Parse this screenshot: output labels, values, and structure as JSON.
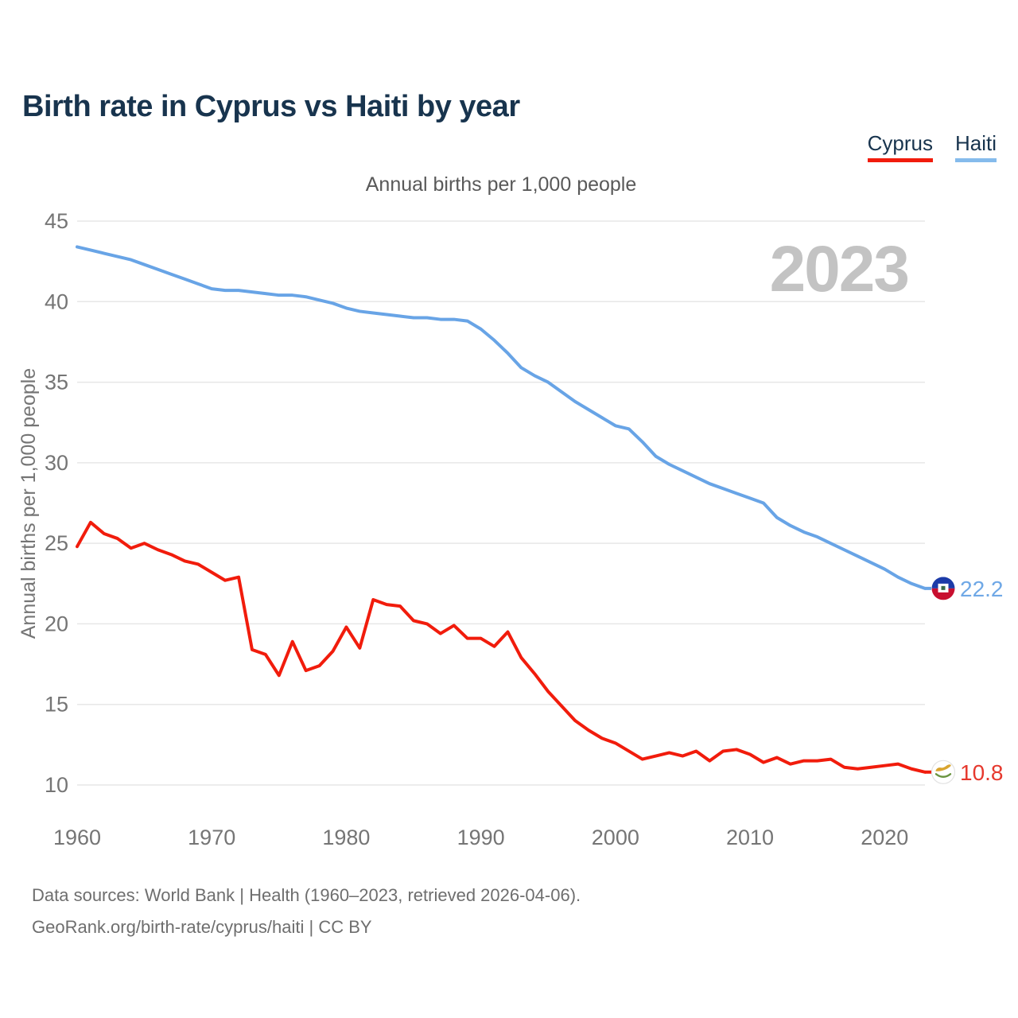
{
  "header": {
    "title": "Birth rate in Cyprus vs Haiti by year"
  },
  "subtitle": "Annual births per 1,000 people",
  "watermark": "2023",
  "footer": {
    "line1": "Data sources: World Bank | Health (1960–2023, retrieved 2026-04-06).",
    "line2": "GeoRank.org/birth-rate/cyprus/haiti | CC BY"
  },
  "chart_data": {
    "type": "line",
    "title": "Annual births per 1,000 people",
    "xlabel": "",
    "ylabel": "Annual births per 1,000 people",
    "ylim": [
      10,
      45
    ],
    "xlim": [
      1960,
      2023
    ],
    "yticks": [
      45,
      40,
      35,
      30,
      25,
      20,
      15,
      10
    ],
    "xticks": [
      1960,
      1970,
      1980,
      1990,
      2000,
      2010,
      2020
    ],
    "grid": true,
    "legend_position": "top-right",
    "x": [
      1960,
      1961,
      1962,
      1963,
      1964,
      1965,
      1966,
      1967,
      1968,
      1969,
      1970,
      1971,
      1972,
      1973,
      1974,
      1975,
      1976,
      1977,
      1978,
      1979,
      1980,
      1981,
      1982,
      1983,
      1984,
      1985,
      1986,
      1987,
      1988,
      1989,
      1990,
      1991,
      1992,
      1993,
      1994,
      1995,
      1996,
      1997,
      1998,
      1999,
      2000,
      2001,
      2002,
      2003,
      2004,
      2005,
      2006,
      2007,
      2008,
      2009,
      2010,
      2011,
      2012,
      2013,
      2014,
      2015,
      2016,
      2017,
      2018,
      2019,
      2020,
      2021,
      2022,
      2023
    ],
    "series": [
      {
        "name": "Cyprus",
        "color": "#f11c0c",
        "label_color": "#e6392e",
        "end_label": "10.8",
        "flag": "cyprus-flag",
        "values": [
          24.8,
          26.3,
          25.6,
          25.3,
          24.7,
          25.0,
          24.6,
          24.3,
          23.9,
          23.7,
          23.2,
          22.7,
          22.9,
          18.4,
          18.1,
          16.8,
          18.9,
          17.1,
          17.4,
          18.3,
          19.8,
          18.5,
          21.5,
          21.2,
          21.1,
          20.2,
          20.0,
          19.4,
          19.9,
          19.1,
          19.1,
          18.6,
          19.5,
          17.9,
          16.9,
          15.8,
          14.9,
          14.0,
          13.4,
          12.9,
          12.6,
          12.1,
          11.6,
          11.8,
          12.0,
          11.8,
          12.1,
          11.5,
          12.1,
          12.2,
          11.9,
          11.4,
          11.7,
          11.3,
          11.5,
          11.5,
          11.6,
          11.1,
          11.0,
          11.1,
          11.2,
          11.3,
          11.0,
          10.8
        ]
      },
      {
        "name": "Haiti",
        "color": "#68a4e6",
        "label_color": "#6fa8e6",
        "end_label": "22.2",
        "flag": "haiti-flag",
        "values": [
          43.4,
          43.2,
          43.0,
          42.8,
          42.6,
          42.3,
          42.0,
          41.7,
          41.4,
          41.1,
          40.8,
          40.7,
          40.7,
          40.6,
          40.5,
          40.4,
          40.4,
          40.3,
          40.1,
          39.9,
          39.6,
          39.4,
          39.3,
          39.2,
          39.1,
          39.0,
          39.0,
          38.9,
          38.9,
          38.8,
          38.3,
          37.6,
          36.8,
          35.9,
          35.4,
          35.0,
          34.4,
          33.8,
          33.3,
          32.8,
          32.3,
          32.1,
          31.3,
          30.4,
          29.9,
          29.5,
          29.1,
          28.7,
          28.4,
          28.1,
          27.8,
          27.5,
          26.6,
          26.1,
          25.7,
          25.4,
          25.0,
          24.6,
          24.2,
          23.8,
          23.4,
          22.9,
          22.5,
          22.2
        ]
      }
    ]
  }
}
